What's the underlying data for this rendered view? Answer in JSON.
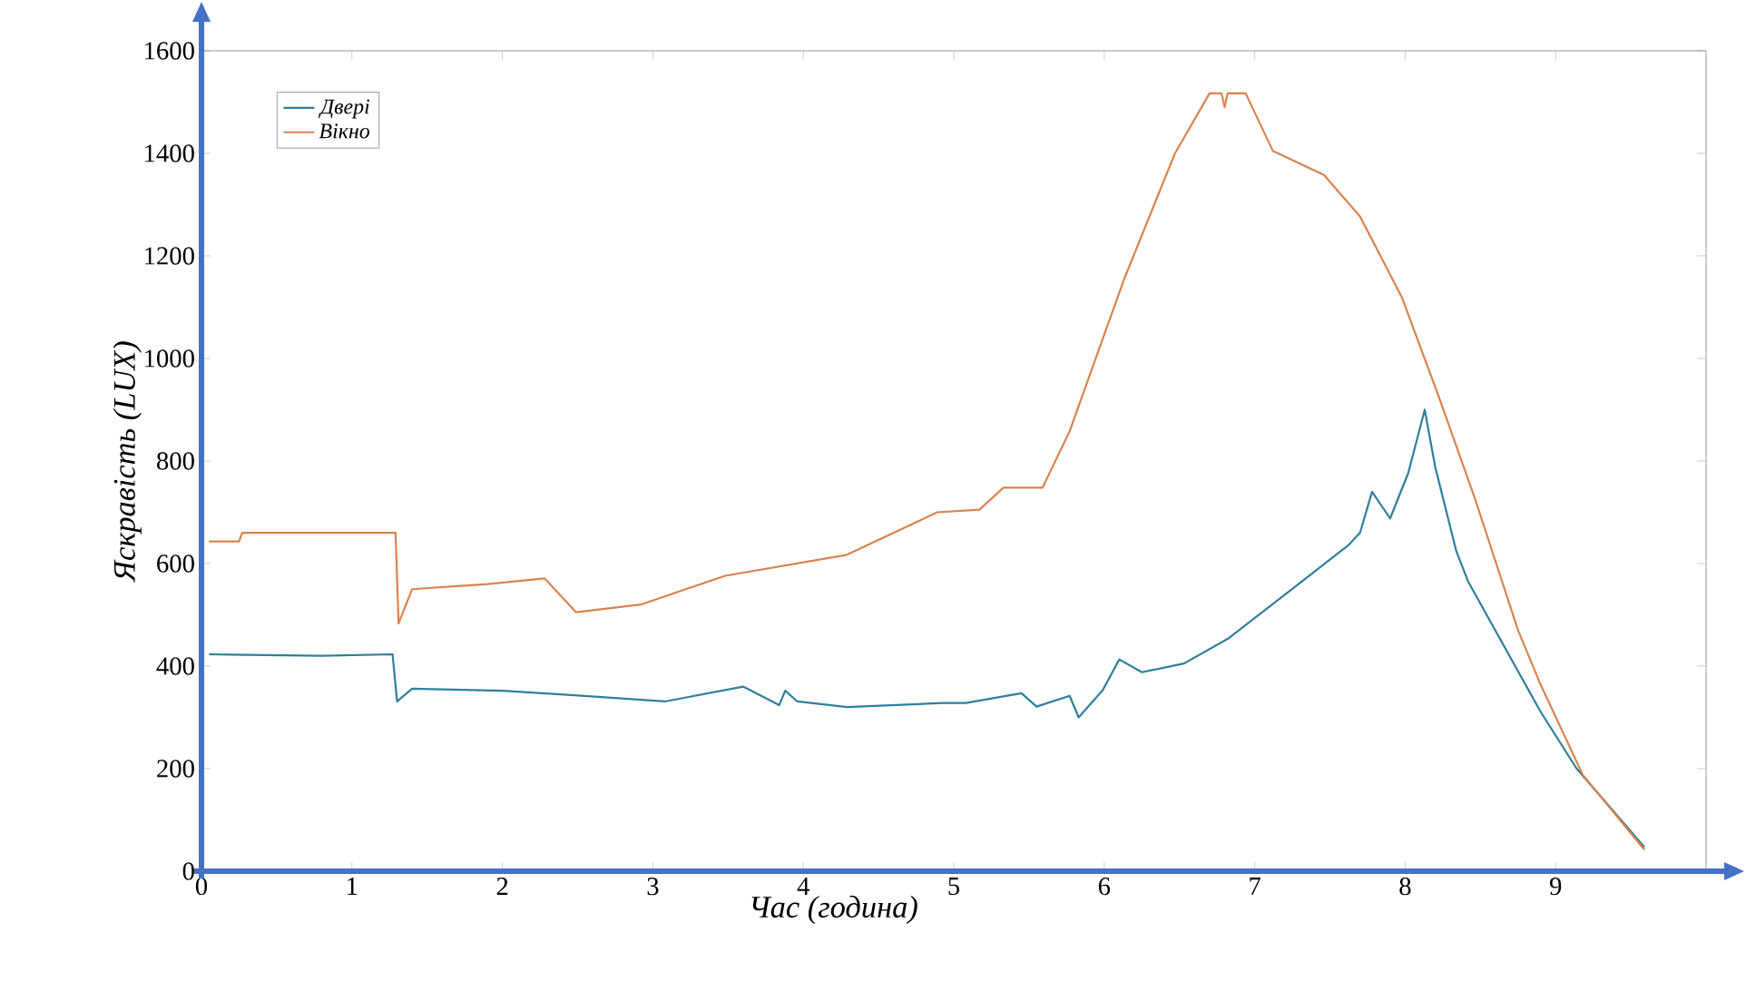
{
  "chart_data": {
    "type": "line",
    "xlabel": "Час (година)",
    "ylabel": "Яскравість (LUX)",
    "xlim": [
      0,
      10
    ],
    "ylim": [
      0,
      1600
    ],
    "xticks": [
      0,
      1,
      2,
      3,
      4,
      5,
      6,
      7,
      8,
      9
    ],
    "yticks": [
      0,
      200,
      400,
      600,
      800,
      1000,
      1200,
      1400,
      1600
    ],
    "grid": false,
    "legend": "top left",
    "marker": "none",
    "line_style": "solid",
    "series": [
      {
        "name": "Двері",
        "color": "#2f7f9a",
        "x": [
          0.05,
          0.8,
          1.27,
          1.3,
          1.4,
          2.0,
          2.48,
          3.08,
          3.6,
          3.84,
          3.88,
          3.96,
          4.29,
          4.93,
          5.08,
          5.45,
          5.55,
          5.77,
          5.83,
          5.99,
          6.1,
          6.25,
          6.53,
          6.82,
          7.26,
          7.62,
          7.7,
          7.78,
          7.9,
          8.02,
          8.13,
          8.2,
          8.34,
          8.42,
          8.9,
          9.14,
          9.59
        ],
        "values": [
          423,
          420,
          423,
          331,
          356,
          352,
          343,
          331,
          360,
          324,
          352,
          331,
          320,
          328,
          328,
          347,
          321,
          342,
          300,
          353,
          413,
          388,
          405,
          453,
          553,
          635,
          660,
          740,
          688,
          776,
          900,
          788,
          624,
          564,
          311,
          200,
          47
        ]
      },
      {
        "name": "Вікно",
        "color": "#d9834f",
        "x": [
          0.05,
          0.25,
          0.27,
          1.29,
          1.31,
          1.4,
          1.9,
          2.28,
          2.49,
          2.92,
          3.48,
          4.29,
          4.89,
          5.17,
          5.33,
          5.59,
          5.77,
          6.13,
          6.47,
          6.7,
          6.78,
          6.8,
          6.82,
          6.94,
          7.12,
          7.46,
          7.7,
          7.98,
          8.22,
          8.46,
          8.75,
          8.9,
          9.18,
          9.59
        ],
        "values": [
          643,
          643,
          660,
          660,
          483,
          550,
          560,
          571,
          505,
          520,
          576,
          617,
          700,
          705,
          748,
          748,
          858,
          1153,
          1400,
          1517,
          1517,
          1490,
          1517,
          1517,
          1405,
          1358,
          1277,
          1118,
          928,
          730,
          470,
          364,
          188,
          42
        ]
      }
    ]
  }
}
